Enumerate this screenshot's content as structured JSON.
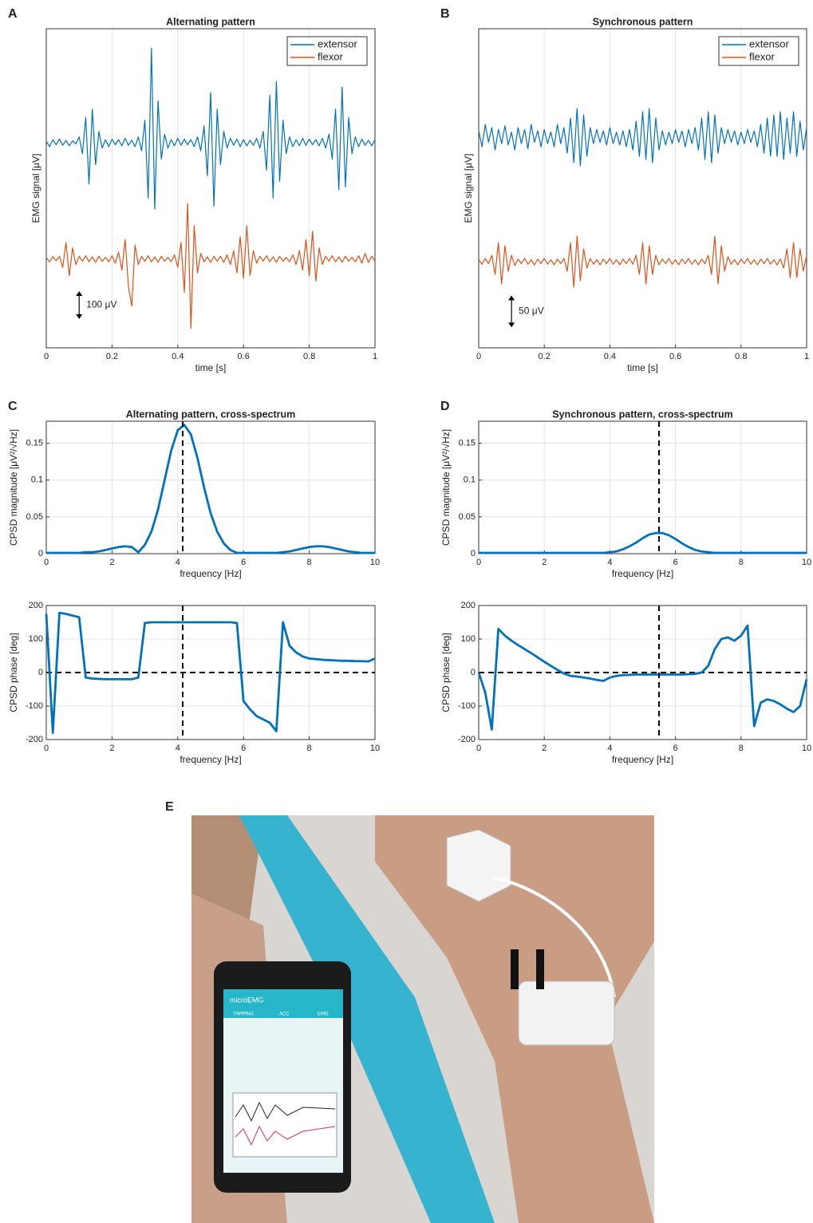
{
  "chart_data": [
    {
      "type": "line",
      "panel": "A",
      "title": "Alternating pattern",
      "xlabel": "time [s]",
      "ylabel": "EMG signal [μV]",
      "x": [
        0,
        0.01,
        0.02,
        0.03,
        0.04,
        0.05,
        0.06,
        0.07,
        0.08,
        0.09,
        0.1,
        0.11,
        0.12,
        0.13,
        0.14,
        0.15,
        0.16,
        0.17,
        0.18,
        0.19,
        0.2,
        0.21,
        0.22,
        0.23,
        0.24,
        0.25,
        0.26,
        0.27,
        0.28,
        0.29,
        0.3,
        0.31,
        0.32,
        0.33,
        0.34,
        0.35,
        0.36,
        0.37,
        0.38,
        0.39,
        0.4,
        0.41,
        0.42,
        0.43,
        0.44,
        0.45,
        0.46,
        0.47,
        0.48,
        0.49,
        0.5,
        0.51,
        0.52,
        0.53,
        0.54,
        0.55,
        0.56,
        0.57,
        0.58,
        0.59,
        0.6,
        0.61,
        0.62,
        0.63,
        0.64,
        0.65,
        0.66,
        0.67,
        0.68,
        0.69,
        0.7,
        0.71,
        0.72,
        0.73,
        0.74,
        0.75,
        0.76,
        0.77,
        0.78,
        0.79,
        0.8,
        0.81,
        0.82,
        0.83,
        0.84,
        0.85,
        0.86,
        0.87,
        0.88,
        0.89,
        0.9,
        0.91,
        0.92,
        0.93,
        0.94,
        0.95,
        0.96,
        0.97,
        0.98,
        0.99,
        1
      ],
      "series": [
        {
          "name": "extensor",
          "color": "#0072bd",
          "values": [
            5,
            -15,
            10,
            -8,
            12,
            -10,
            8,
            -12,
            6,
            -5,
            20,
            -40,
            90,
            -150,
            120,
            -80,
            40,
            -20,
            10,
            -15,
            12,
            -8,
            10,
            -12,
            15,
            -10,
            8,
            -15,
            20,
            -30,
            80,
            -200,
            340,
            -240,
            150,
            -60,
            30,
            -20,
            10,
            -12,
            15,
            -10,
            12,
            -8,
            10,
            -15,
            20,
            -30,
            60,
            -120,
            180,
            -230,
            120,
            -80,
            40,
            -20,
            15,
            -10,
            12,
            -15,
            10,
            -12,
            8,
            -10,
            15,
            -20,
            40,
            -100,
            170,
            -200,
            220,
            -140,
            80,
            -40,
            20,
            -15,
            10,
            -12,
            15,
            -10,
            12,
            -8,
            10,
            -12,
            15,
            -20,
            30,
            -60,
            120,
            -170,
            200,
            -160,
            90,
            -40,
            20,
            -15,
            12,
            -10,
            8,
            -12,
            10
          ]
        },
        {
          "name": "flexor",
          "color": "#d95319",
          "values": [
            -415,
            -430,
            -412,
            -426,
            -410,
            -450,
            -360,
            -480,
            -380,
            -440,
            -410,
            -428,
            -408,
            -430,
            -412,
            -432,
            -410,
            -428,
            -414,
            -430,
            -408,
            -435,
            -395,
            -460,
            -350,
            -520,
            -590,
            -370,
            -440,
            -410,
            -428,
            -408,
            -430,
            -412,
            -432,
            -410,
            -428,
            -414,
            -430,
            -405,
            -450,
            -360,
            -540,
            -220,
            -670,
            -300,
            -470,
            -400,
            -430,
            -412,
            -432,
            -410,
            -428,
            -410,
            -432,
            -405,
            -440,
            -390,
            -470,
            -340,
            -490,
            -300,
            -480,
            -390,
            -435,
            -410,
            -428,
            -408,
            -430,
            -412,
            -432,
            -410,
            -428,
            -414,
            -430,
            -405,
            -440,
            -390,
            -460,
            -350,
            -480,
            -320,
            -500,
            -380,
            -440,
            -410,
            -428,
            -408,
            -430,
            -412,
            -432,
            -410,
            -428,
            -414,
            -430,
            -408,
            -435,
            -400,
            -432,
            -410,
            -428
          ]
        }
      ],
      "xlim": [
        0,
        1
      ],
      "xticks": [
        0,
        0.2,
        0.4,
        0.6,
        0.8,
        1
      ],
      "ylim": [
        -740,
        410
      ],
      "grid": true,
      "legend": "upper right",
      "scalebar": {
        "x": 0.1,
        "y": -636,
        "value": 100,
        "label": "100 μV"
      }
    },
    {
      "type": "line",
      "panel": "B",
      "title": "Synchronous pattern",
      "xlabel": "time [s]",
      "ylabel": "EMG signal [μV]",
      "x": [
        0,
        0.01,
        0.02,
        0.03,
        0.04,
        0.05,
        0.06,
        0.07,
        0.08,
        0.09,
        0.1,
        0.11,
        0.12,
        0.13,
        0.14,
        0.15,
        0.16,
        0.17,
        0.18,
        0.19,
        0.2,
        0.21,
        0.22,
        0.23,
        0.24,
        0.25,
        0.26,
        0.27,
        0.28,
        0.29,
        0.3,
        0.31,
        0.32,
        0.33,
        0.34,
        0.35,
        0.36,
        0.37,
        0.38,
        0.39,
        0.4,
        0.41,
        0.42,
        0.43,
        0.44,
        0.45,
        0.46,
        0.47,
        0.48,
        0.49,
        0.5,
        0.51,
        0.52,
        0.53,
        0.54,
        0.55,
        0.56,
        0.57,
        0.58,
        0.59,
        0.6,
        0.61,
        0.62,
        0.63,
        0.64,
        0.65,
        0.66,
        0.67,
        0.68,
        0.69,
        0.7,
        0.71,
        0.72,
        0.73,
        0.74,
        0.75,
        0.76,
        0.77,
        0.78,
        0.79,
        0.8,
        0.81,
        0.82,
        0.83,
        0.84,
        0.85,
        0.86,
        0.87,
        0.88,
        0.89,
        0.9,
        0.91,
        0.92,
        0.93,
        0.94,
        0.95,
        0.96,
        0.97,
        0.98,
        0.99,
        1
      ],
      "series": [
        {
          "name": "extensor",
          "color": "#0072bd",
          "values": [
            10,
            -15,
            20,
            -8,
            15,
            -20,
            12,
            -10,
            18,
            -12,
            8,
            -20,
            15,
            -10,
            12,
            -18,
            20,
            -8,
            10,
            -15,
            12,
            -10,
            8,
            -15,
            20,
            -10,
            15,
            -25,
            30,
            -40,
            45,
            -45,
            35,
            -30,
            15,
            -10,
            12,
            -8,
            10,
            -12,
            15,
            -10,
            8,
            -12,
            10,
            -15,
            12,
            -20,
            25,
            -30,
            40,
            -35,
            45,
            -40,
            30,
            -20,
            10,
            -12,
            8,
            -10,
            12,
            -8,
            10,
            -15,
            12,
            -10,
            15,
            -20,
            30,
            -35,
            40,
            -40,
            35,
            -25,
            15,
            -10,
            12,
            -8,
            10,
            -12,
            8,
            -10,
            12,
            -8,
            10,
            -15,
            20,
            -25,
            30,
            -30,
            35,
            -30,
            40,
            -35,
            30,
            -25,
            40,
            -30,
            25,
            -20,
            15
          ]
        },
        {
          "name": "flexor",
          "color": "#d95319",
          "values": [
            -192,
            -199,
            -190,
            -198,
            -185,
            -215,
            -165,
            -230,
            -170,
            -210,
            -185,
            -201,
            -191,
            -198,
            -190,
            -199,
            -192,
            -200,
            -191,
            -198,
            -190,
            -199,
            -192,
            -200,
            -191,
            -198,
            -190,
            -210,
            -165,
            -235,
            -155,
            -225,
            -175,
            -205,
            -190,
            -199,
            -192,
            -200,
            -191,
            -198,
            -190,
            -199,
            -192,
            -200,
            -191,
            -198,
            -190,
            -199,
            -185,
            -215,
            -165,
            -230,
            -170,
            -215,
            -185,
            -200,
            -191,
            -198,
            -190,
            -199,
            -192,
            -200,
            -191,
            -198,
            -190,
            -199,
            -192,
            -200,
            -191,
            -198,
            -185,
            -215,
            -155,
            -230,
            -170,
            -210,
            -187,
            -199,
            -192,
            -200,
            -191,
            -198,
            -190,
            -199,
            -192,
            -200,
            -191,
            -198,
            -190,
            -199,
            -192,
            -200,
            -191,
            -205,
            -175,
            -220,
            -165,
            -220,
            -175,
            -210,
            -185
          ]
        }
      ],
      "xlim": [
        0,
        1
      ],
      "xticks": [
        0,
        0.2,
        0.4,
        0.6,
        0.8,
        1
      ],
      "ylim": [
        -330,
        170
      ],
      "grid": true,
      "legend": "upper right",
      "scalebar": {
        "x": 0.1,
        "y": -298,
        "value": 50,
        "label": "50 μV"
      }
    },
    {
      "type": "line",
      "panel": "C",
      "title": "Alternating pattern, cross-spectrum",
      "xlabel": "frequency [Hz]",
      "ylabel": "CPSD magnitude [μV²/√Hz]",
      "x": [
        0,
        0.2,
        0.4,
        0.6,
        0.8,
        1,
        1.2,
        1.4,
        1.6,
        1.8,
        2,
        2.2,
        2.4,
        2.6,
        2.8,
        3,
        3.2,
        3.4,
        3.6,
        3.8,
        4,
        4.2,
        4.4,
        4.6,
        4.8,
        5,
        5.2,
        5.4,
        5.6,
        5.8,
        6,
        6.2,
        6.4,
        6.6,
        6.8,
        7,
        7.2,
        7.4,
        7.6,
        7.8,
        8,
        8.2,
        8.4,
        8.6,
        8.8,
        9,
        9.2,
        9.4,
        9.6,
        9.8,
        10
      ],
      "values": [
        0.001,
        0.001,
        0.001,
        0.001,
        0.001,
        0.001,
        0.002,
        0.002,
        0.003,
        0.005,
        0.007,
        0.009,
        0.01,
        0.009,
        0.002,
        0.012,
        0.03,
        0.06,
        0.1,
        0.14,
        0.168,
        0.175,
        0.162,
        0.13,
        0.09,
        0.055,
        0.03,
        0.014,
        0.005,
        0.001,
        0.001,
        0.001,
        0.001,
        0.001,
        0.001,
        0.001,
        0.002,
        0.003,
        0.005,
        0.007,
        0.009,
        0.01,
        0.01,
        0.009,
        0.007,
        0.005,
        0.003,
        0.002,
        0.001,
        0.001,
        0.001
      ],
      "color": "#0072bd",
      "xlim": [
        0,
        10
      ],
      "xticks": [
        0,
        2,
        4,
        6,
        8,
        10
      ],
      "ylim": [
        0,
        0.18
      ],
      "yticks": [
        0,
        0.05,
        0.1,
        0.15
      ],
      "grid": true,
      "vline": 4.15
    },
    {
      "type": "line",
      "xlabel": "frequency [Hz]",
      "ylabel": "CPSD phase [deg]",
      "x": [
        0,
        0.2,
        0.4,
        0.6,
        0.8,
        1,
        1.2,
        1.4,
        1.6,
        1.8,
        2,
        2.2,
        2.4,
        2.6,
        2.8,
        3,
        3.2,
        3.4,
        3.6,
        3.8,
        4,
        4.2,
        4.4,
        4.6,
        4.8,
        5,
        5.2,
        5.4,
        5.6,
        5.8,
        6,
        6.2,
        6.4,
        6.6,
        6.8,
        7,
        7.2,
        7.4,
        7.6,
        7.8,
        8,
        8.2,
        8.4,
        8.6,
        8.8,
        9,
        9.2,
        9.4,
        9.6,
        9.8,
        10
      ],
      "values": [
        175,
        -180,
        178,
        175,
        170,
        165,
        -15,
        -18,
        -19,
        -20,
        -20,
        -20,
        -20,
        -20,
        -15,
        148,
        150,
        150,
        150,
        150,
        150,
        150,
        150,
        150,
        150,
        150,
        150,
        150,
        150,
        148,
        -85,
        -110,
        -130,
        -140,
        -150,
        -175,
        150,
        80,
        60,
        48,
        42,
        40,
        38,
        37,
        36,
        35,
        35,
        34,
        34,
        33,
        42
      ],
      "color": "#0072bd",
      "xlim": [
        0,
        10
      ],
      "xticks": [
        0,
        2,
        4,
        6,
        8,
        10
      ],
      "ylim": [
        -200,
        200
      ],
      "yticks": [
        -200,
        -100,
        0,
        100,
        200
      ],
      "grid": true,
      "vline": 4.15,
      "hline": 0
    },
    {
      "type": "line",
      "panel": "D",
      "title": "Synchronous pattern, cross-spectrum",
      "xlabel": "frequency [Hz]",
      "ylabel": "CPSD magnitude [μV²/√Hz]",
      "x": [
        0,
        0.2,
        0.4,
        0.6,
        0.8,
        1,
        1.2,
        1.4,
        1.6,
        1.8,
        2,
        2.2,
        2.4,
        2.6,
        2.8,
        3,
        3.2,
        3.4,
        3.6,
        3.8,
        4,
        4.2,
        4.4,
        4.6,
        4.8,
        5,
        5.2,
        5.4,
        5.6,
        5.8,
        6,
        6.2,
        6.4,
        6.6,
        6.8,
        7,
        7.2,
        7.4,
        7.6,
        7.8,
        8,
        8.2,
        8.4,
        8.6,
        8.8,
        9,
        9.2,
        9.4,
        9.6,
        9.8,
        10
      ],
      "values": [
        0.001,
        0.001,
        0.001,
        0.001,
        0.001,
        0.001,
        0.001,
        0.001,
        0.001,
        0.001,
        0.001,
        0.001,
        0.001,
        0.001,
        0.001,
        0.001,
        0.001,
        0.001,
        0.001,
        0.001,
        0.002,
        0.003,
        0.006,
        0.01,
        0.015,
        0.021,
        0.026,
        0.028,
        0.028,
        0.025,
        0.02,
        0.014,
        0.009,
        0.005,
        0.003,
        0.002,
        0.001,
        0.001,
        0.001,
        0.001,
        0.001,
        0.001,
        0.001,
        0.001,
        0.001,
        0.001,
        0.001,
        0.001,
        0.001,
        0.001,
        0.001
      ],
      "color": "#0072bd",
      "xlim": [
        0,
        10
      ],
      "xticks": [
        0,
        2,
        4,
        6,
        8,
        10
      ],
      "ylim": [
        0,
        0.18
      ],
      "yticks": [
        0,
        0.05,
        0.1,
        0.15
      ],
      "grid": true,
      "vline": 5.5
    },
    {
      "type": "line",
      "xlabel": "frequency [Hz]",
      "ylabel": "CPSD phase [deg]",
      "x": [
        0,
        0.2,
        0.4,
        0.6,
        0.8,
        1,
        1.2,
        1.4,
        1.6,
        1.8,
        2,
        2.2,
        2.4,
        2.6,
        2.8,
        3,
        3.2,
        3.4,
        3.6,
        3.8,
        4,
        4.2,
        4.4,
        4.6,
        4.8,
        5,
        5.2,
        5.4,
        5.6,
        5.8,
        6,
        6.2,
        6.4,
        6.6,
        6.8,
        7,
        7.2,
        7.4,
        7.6,
        7.8,
        8,
        8.2,
        8.4,
        8.6,
        8.8,
        9,
        9.2,
        9.4,
        9.6,
        9.8,
        10
      ],
      "values": [
        0,
        -60,
        -170,
        130,
        110,
        95,
        82,
        70,
        58,
        45,
        32,
        20,
        8,
        -3,
        -10,
        -12,
        -15,
        -18,
        -22,
        -25,
        -15,
        -10,
        -8,
        -7,
        -6,
        -6,
        -6,
        -6,
        -6,
        -6,
        -6,
        -6,
        -5,
        -4,
        0,
        20,
        70,
        100,
        105,
        95,
        110,
        140,
        -160,
        -90,
        -80,
        -85,
        -95,
        -108,
        -118,
        -100,
        -20
      ],
      "color": "#0072bd",
      "xlim": [
        0,
        10
      ],
      "xticks": [
        0,
        2,
        4,
        6,
        8,
        10
      ],
      "ylim": [
        -200,
        200
      ],
      "yticks": [
        -200,
        -100,
        0,
        100,
        200
      ],
      "grid": true,
      "vline": 5.5,
      "hline": 0
    }
  ],
  "photo": {
    "panel": "E",
    "app_title": "microEMG",
    "tabs": [
      "TAPPING",
      "ACC",
      "EMG"
    ]
  }
}
